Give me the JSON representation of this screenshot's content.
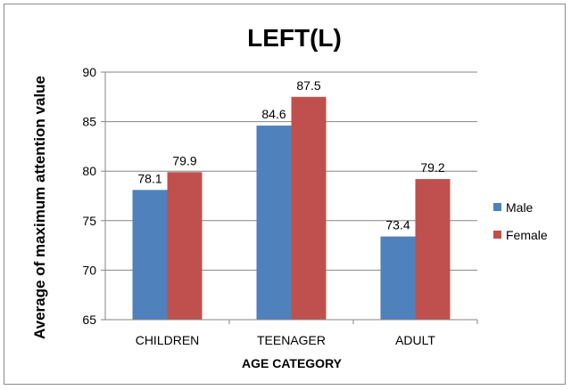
{
  "chart_data": {
    "type": "bar",
    "title": "LEFT(L)",
    "xlabel": "AGE CATEGORY",
    "ylabel": "Average of maximum attention value",
    "categories": [
      "CHILDREN",
      "TEENAGER",
      "ADULT"
    ],
    "ylim": [
      65,
      90
    ],
    "yticks": [
      65,
      70,
      75,
      80,
      85,
      90
    ],
    "grid": true,
    "legend_position": "right",
    "series": [
      {
        "name": "Male",
        "color": "#4f81bd",
        "values": [
          78.1,
          84.6,
          73.4
        ]
      },
      {
        "name": "Female",
        "color": "#c0504d",
        "values": [
          79.9,
          87.5,
          79.2
        ]
      }
    ]
  }
}
